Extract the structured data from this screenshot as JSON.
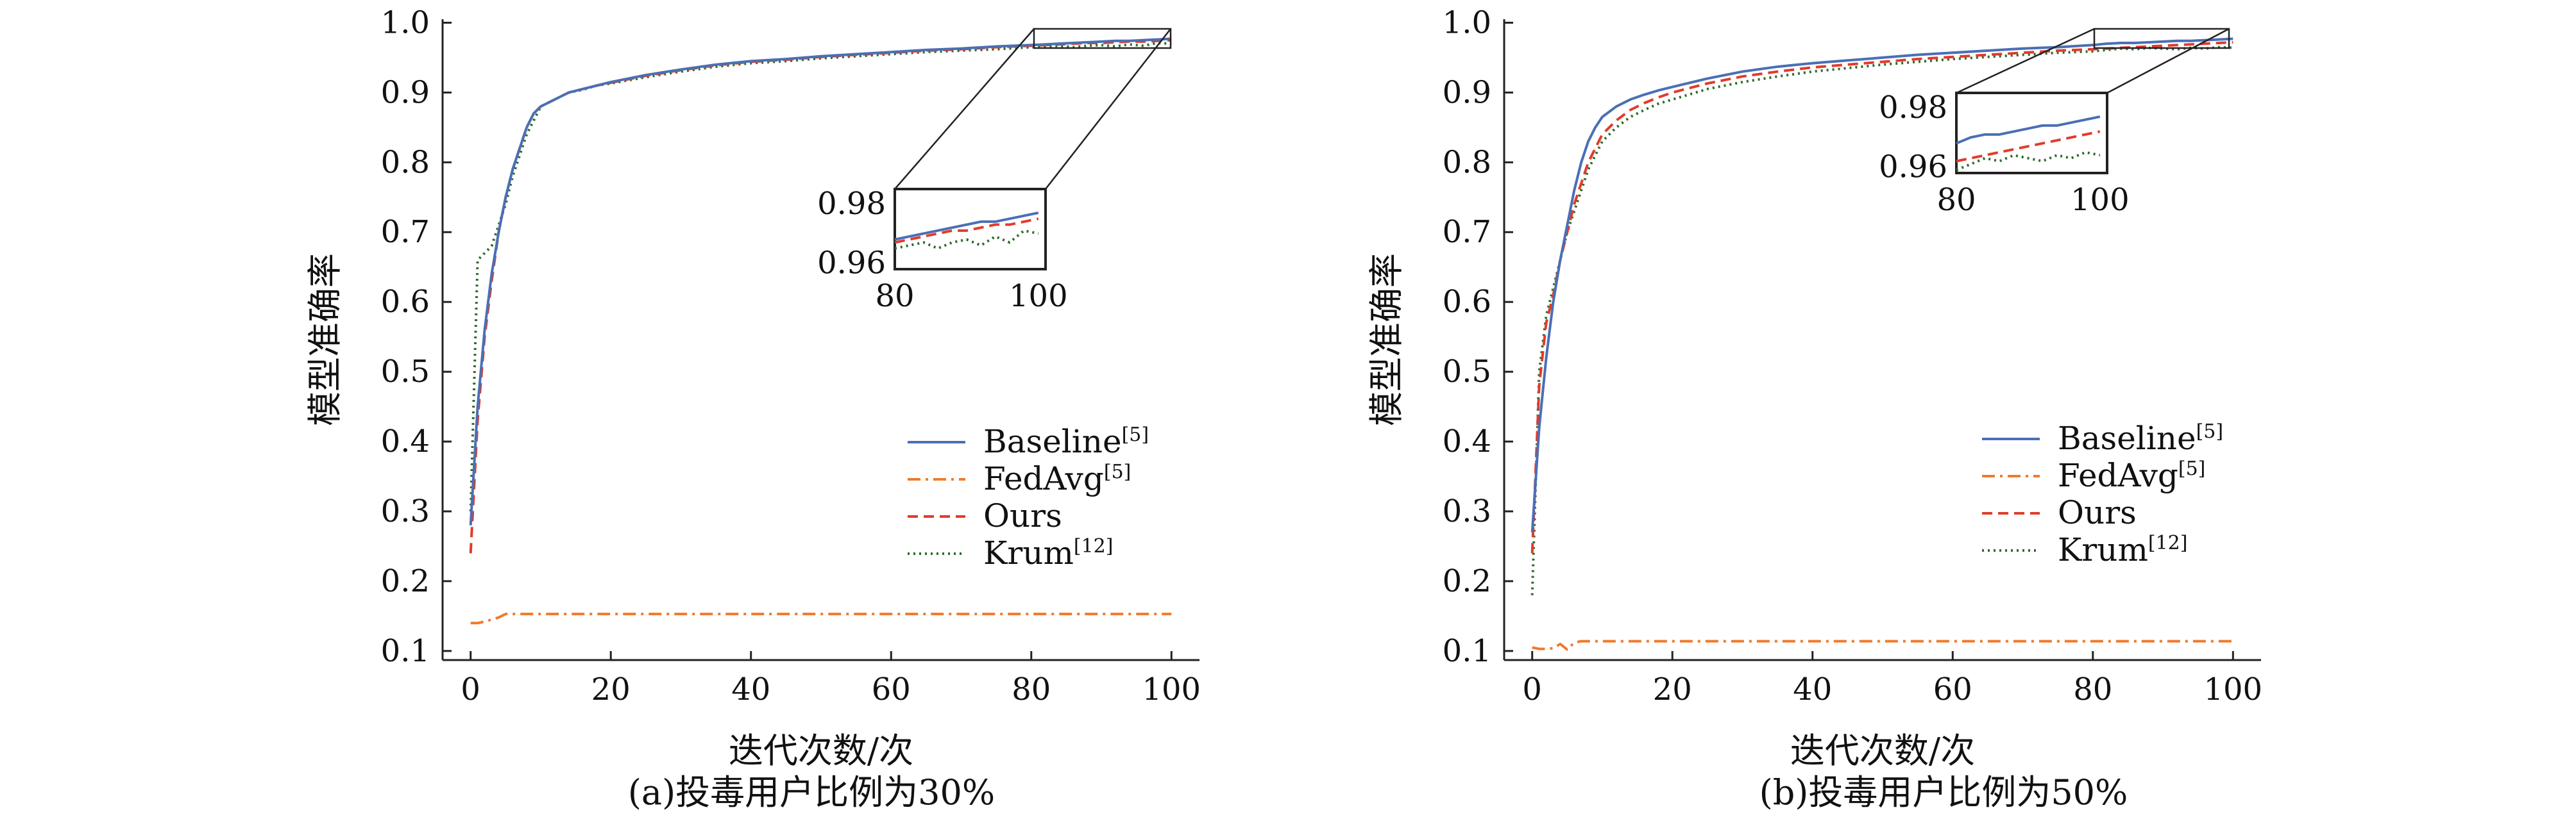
{
  "figure": {
    "panels": [
      {
        "caption": "(a)投毒用户比例为30%",
        "xlabel": "迭代次数/次",
        "ylabel": "模型准确率",
        "xticks": [
          "0",
          "20",
          "40",
          "60",
          "80",
          "100"
        ],
        "yticks": [
          "0.1",
          "0.2",
          "0.3",
          "0.4",
          "0.5",
          "0.6",
          "0.7",
          "0.8",
          "0.9",
          "1.0"
        ],
        "inset_xticks": [
          "80",
          "100"
        ],
        "inset_yticks": [
          "0.98",
          "0.96"
        ]
      },
      {
        "caption": "(b)投毒用户比例为50%",
        "xlabel": "迭代次数/次",
        "ylabel": "模型准确率",
        "xticks": [
          "0",
          "20",
          "40",
          "60",
          "80",
          "100"
        ],
        "yticks": [
          "0.1",
          "0.2",
          "0.3",
          "0.4",
          "0.5",
          "0.6",
          "0.7",
          "0.8",
          "0.9",
          "1.0"
        ],
        "inset_xticks": [
          "80",
          "100"
        ],
        "inset_yticks": [
          "0.98",
          "0.96"
        ]
      }
    ],
    "legend": [
      {
        "name": "Baseline",
        "ref": "[5]"
      },
      {
        "name": "FedAvg",
        "ref": "[5]"
      },
      {
        "name": "Ours",
        "ref": ""
      },
      {
        "name": "Krum",
        "ref": "[12]"
      }
    ]
  },
  "chart_data": [
    {
      "type": "line",
      "caption": "(a)投毒用户比例为30%",
      "xlabel": "迭代次数/次",
      "ylabel": "模型准确率",
      "xlim": [
        0,
        100
      ],
      "ylim": [
        0.1,
        1.0
      ],
      "legend_position": "center-right",
      "colors": {
        "Baseline": "#4a6fb5",
        "FedAvg": "#f07a2c",
        "Ours": "#e23b2a",
        "Krum": "#2e6b2b"
      },
      "inset": {
        "xlim": [
          80,
          100
        ],
        "ylim": [
          0.96,
          0.985
        ]
      },
      "x": [
        0,
        1,
        2,
        3,
        4,
        5,
        6,
        7,
        8,
        9,
        10,
        12,
        14,
        16,
        18,
        20,
        25,
        30,
        35,
        40,
        45,
        50,
        55,
        60,
        65,
        70,
        75,
        80,
        82,
        84,
        86,
        88,
        90,
        92,
        94,
        96,
        98,
        100
      ],
      "series": [
        {
          "name": "Baseline",
          "values": [
            0.28,
            0.45,
            0.56,
            0.64,
            0.7,
            0.75,
            0.79,
            0.82,
            0.85,
            0.87,
            0.88,
            0.89,
            0.9,
            0.905,
            0.91,
            0.915,
            0.925,
            0.933,
            0.94,
            0.945,
            0.948,
            0.952,
            0.955,
            0.958,
            0.961,
            0.963,
            0.966,
            0.968,
            0.969,
            0.97,
            0.971,
            0.972,
            0.973,
            0.974,
            0.974,
            0.975,
            0.976,
            0.977
          ]
        },
        {
          "name": "FedAvg",
          "values": [
            0.14,
            0.14,
            0.142,
            0.145,
            0.148,
            0.153,
            0.153,
            0.153,
            0.153,
            0.153,
            0.153,
            0.153,
            0.153,
            0.153,
            0.153,
            0.153,
            0.153,
            0.153,
            0.153,
            0.153,
            0.153,
            0.153,
            0.153,
            0.153,
            0.153,
            0.153,
            0.153,
            0.153,
            0.153,
            0.153,
            0.153,
            0.153,
            0.153,
            0.153,
            0.153,
            0.153,
            0.153,
            0.153
          ]
        },
        {
          "name": "Ours",
          "values": [
            0.24,
            0.43,
            0.55,
            0.63,
            0.7,
            0.75,
            0.79,
            0.82,
            0.85,
            0.87,
            0.88,
            0.89,
            0.9,
            0.905,
            0.91,
            0.914,
            0.924,
            0.932,
            0.939,
            0.944,
            0.947,
            0.951,
            0.954,
            0.957,
            0.96,
            0.962,
            0.965,
            0.967,
            0.968,
            0.969,
            0.97,
            0.971,
            0.971,
            0.972,
            0.973,
            0.973,
            0.974,
            0.975
          ]
        },
        {
          "name": "Krum",
          "values": [
            0.3,
            0.66,
            0.67,
            0.68,
            0.71,
            0.74,
            0.78,
            0.81,
            0.84,
            0.86,
            0.88,
            0.89,
            0.9,
            0.904,
            0.91,
            0.913,
            0.922,
            0.93,
            0.937,
            0.942,
            0.945,
            0.949,
            0.952,
            0.955,
            0.958,
            0.96,
            0.962,
            0.965,
            0.966,
            0.967,
            0.965,
            0.967,
            0.968,
            0.966,
            0.969,
            0.967,
            0.971,
            0.97
          ]
        }
      ]
    },
    {
      "type": "line",
      "caption": "(b)投毒用户比例为50%",
      "xlabel": "迭代次数/次",
      "ylabel": "模型准确率",
      "xlim": [
        0,
        100
      ],
      "ylim": [
        0.1,
        1.0
      ],
      "legend_position": "center-right",
      "colors": {
        "Baseline": "#4a6fb5",
        "FedAvg": "#f07a2c",
        "Ours": "#e23b2a",
        "Krum": "#2e6b2b"
      },
      "inset": {
        "xlim": [
          80,
          100
        ],
        "ylim": [
          0.96,
          0.985
        ]
      },
      "x": [
        0,
        1,
        2,
        3,
        4,
        5,
        6,
        7,
        8,
        9,
        10,
        12,
        14,
        16,
        18,
        20,
        25,
        30,
        35,
        40,
        45,
        50,
        55,
        60,
        65,
        70,
        75,
        80,
        82,
        84,
        86,
        88,
        90,
        92,
        94,
        96,
        98,
        100
      ],
      "series": [
        {
          "name": "Baseline",
          "values": [
            0.27,
            0.42,
            0.52,
            0.6,
            0.66,
            0.71,
            0.76,
            0.8,
            0.83,
            0.85,
            0.865,
            0.88,
            0.89,
            0.897,
            0.903,
            0.908,
            0.92,
            0.93,
            0.937,
            0.942,
            0.946,
            0.95,
            0.954,
            0.957,
            0.96,
            0.963,
            0.965,
            0.968,
            0.97,
            0.971,
            0.971,
            0.972,
            0.973,
            0.974,
            0.974,
            0.975,
            0.976,
            0.977
          ]
        },
        {
          "name": "FedAvg",
          "values": [
            0.105,
            0.103,
            0.103,
            0.104,
            0.11,
            0.102,
            0.112,
            0.114,
            0.114,
            0.114,
            0.114,
            0.114,
            0.114,
            0.114,
            0.114,
            0.114,
            0.114,
            0.114,
            0.114,
            0.114,
            0.114,
            0.114,
            0.114,
            0.114,
            0.114,
            0.114,
            0.114,
            0.114,
            0.114,
            0.114,
            0.114,
            0.114,
            0.114,
            0.114,
            0.114,
            0.114,
            0.114,
            0.114
          ]
        },
        {
          "name": "Ours",
          "values": [
            0.24,
            0.48,
            0.57,
            0.61,
            0.66,
            0.7,
            0.74,
            0.77,
            0.8,
            0.82,
            0.84,
            0.86,
            0.875,
            0.885,
            0.893,
            0.9,
            0.913,
            0.923,
            0.93,
            0.936,
            0.94,
            0.944,
            0.948,
            0.951,
            0.954,
            0.957,
            0.96,
            0.962,
            0.963,
            0.964,
            0.965,
            0.966,
            0.967,
            0.968,
            0.969,
            0.97,
            0.971,
            0.972
          ]
        },
        {
          "name": "Krum",
          "values": [
            0.18,
            0.5,
            0.58,
            0.62,
            0.66,
            0.7,
            0.73,
            0.76,
            0.79,
            0.81,
            0.83,
            0.85,
            0.865,
            0.875,
            0.884,
            0.89,
            0.905,
            0.915,
            0.923,
            0.93,
            0.935,
            0.94,
            0.944,
            0.948,
            0.951,
            0.954,
            0.957,
            0.959,
            0.961,
            0.963,
            0.962,
            0.964,
            0.963,
            0.962,
            0.964,
            0.963,
            0.965,
            0.964
          ]
        }
      ]
    }
  ]
}
